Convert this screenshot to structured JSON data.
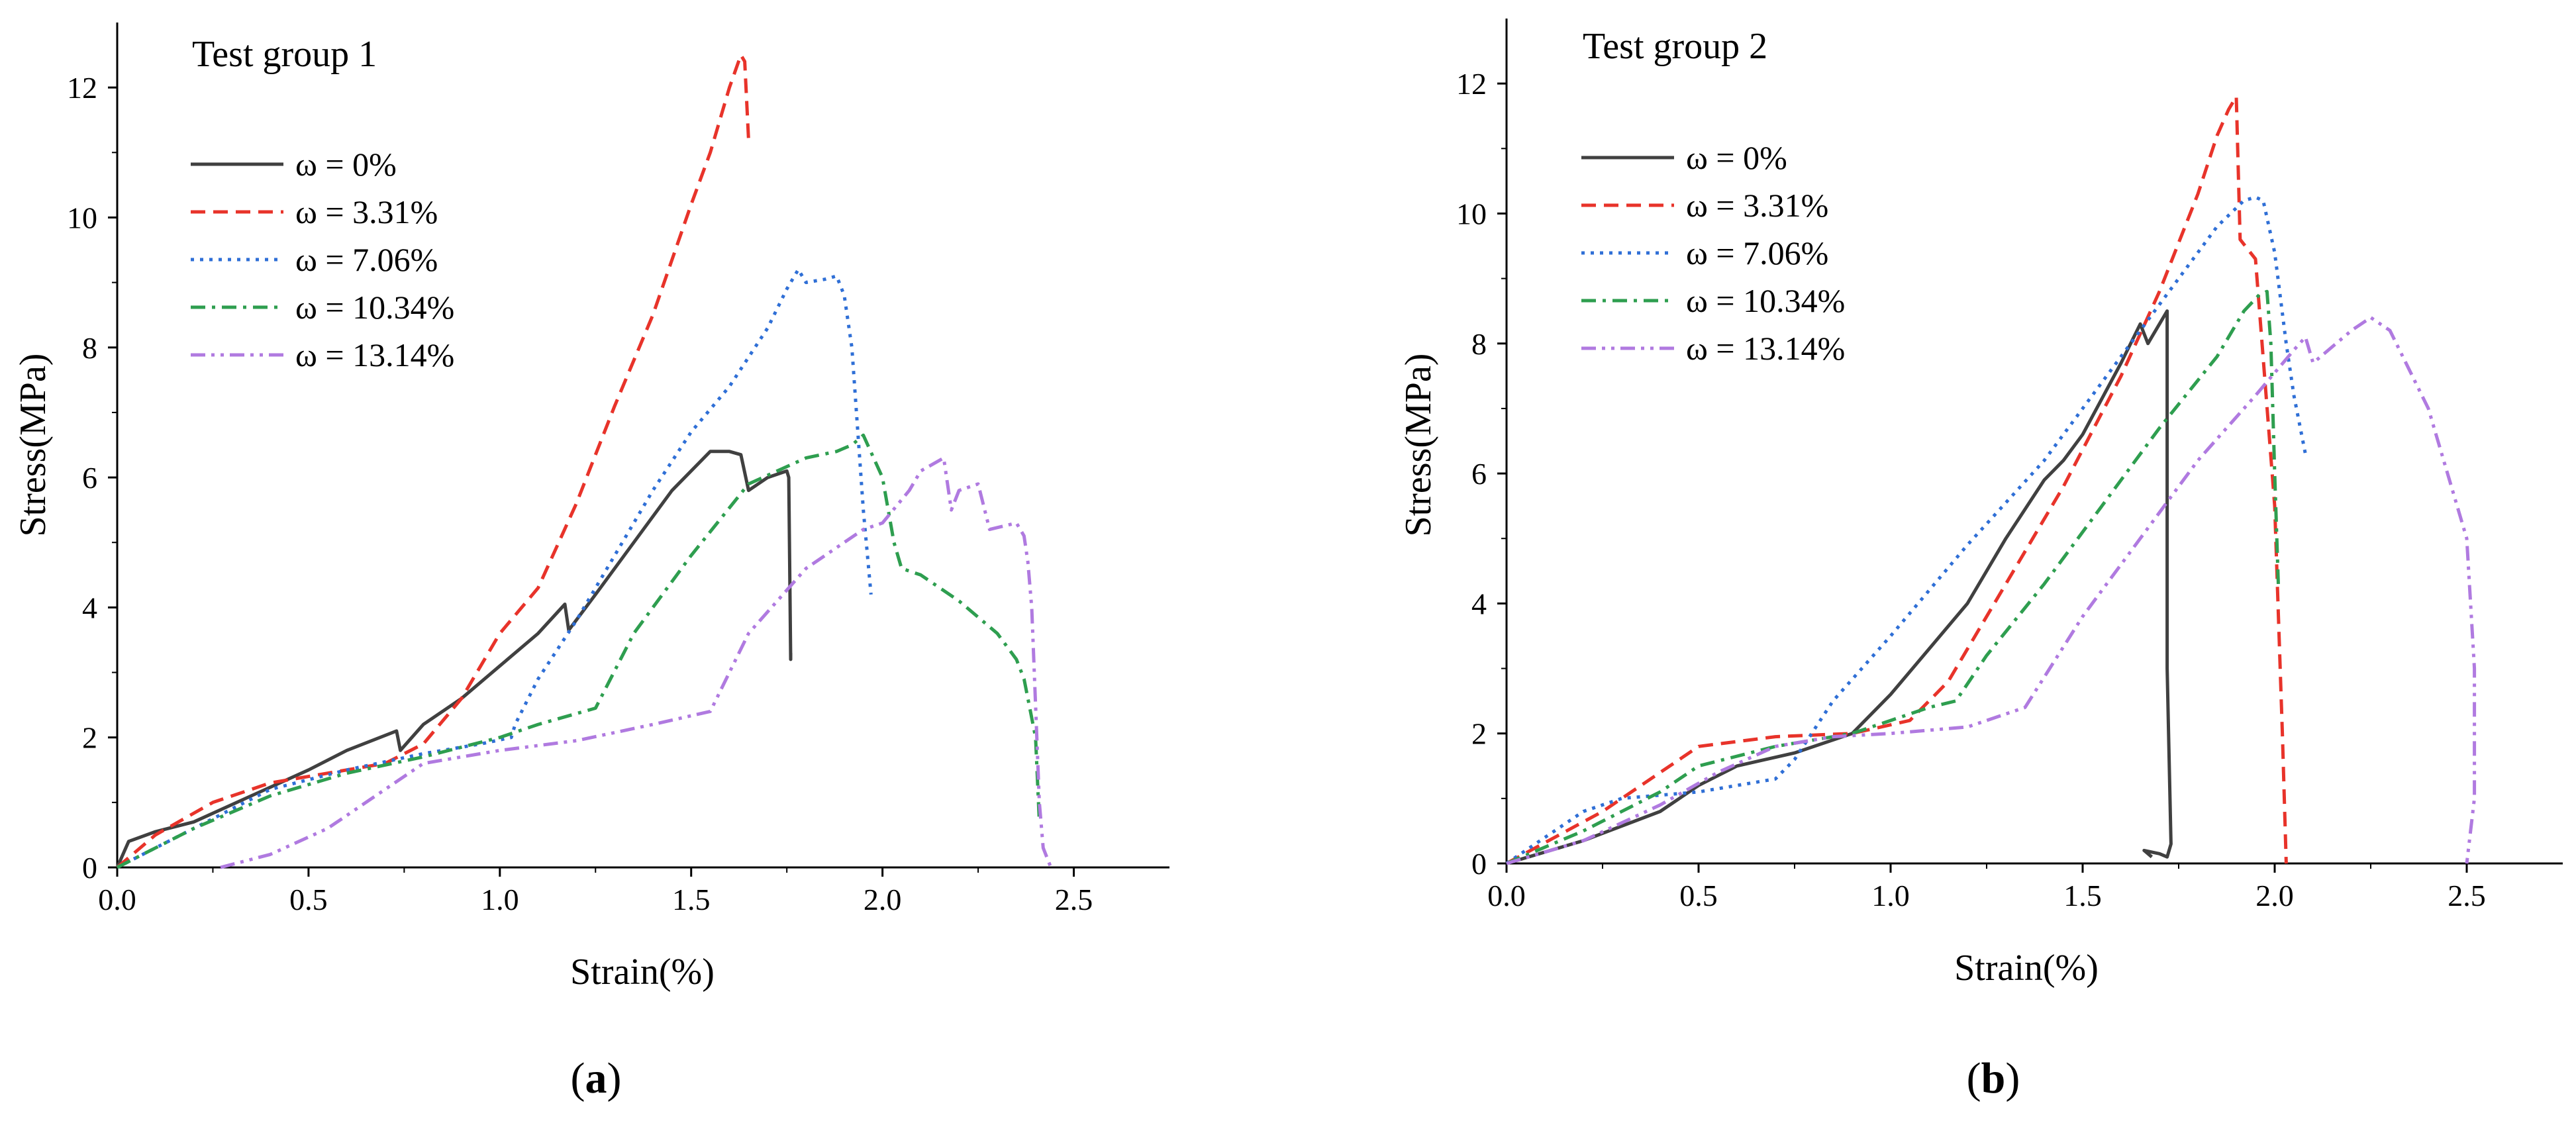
{
  "chart_data": [
    {
      "type": "line",
      "panel_label": "a",
      "title": "Test group 1",
      "xlabel": "Strain(%)",
      "ylabel": "Stress(MPa)",
      "xlim": [
        0,
        2.75
      ],
      "ylim": [
        0,
        13
      ],
      "xticks": [
        "0.0",
        "0.5",
        "1.0",
        "1.5",
        "2.0",
        "2.5"
      ],
      "xtick_values": [
        0,
        0.5,
        1.0,
        1.5,
        2.0,
        2.5
      ],
      "yticks": [
        "0",
        "2",
        "4",
        "6",
        "8",
        "10",
        "12"
      ],
      "ytick_values": [
        0,
        2,
        4,
        6,
        8,
        10,
        12
      ],
      "legend_position": "top-left",
      "series": [
        {
          "name": "ω = 0%",
          "color": "#404040",
          "dash": "solid",
          "x": [
            0,
            0.03,
            0.1,
            0.2,
            0.35,
            0.5,
            0.6,
            0.73,
            0.74,
            0.8,
            0.9,
            1.0,
            1.1,
            1.17,
            1.18,
            1.25,
            1.35,
            1.45,
            1.55,
            1.6,
            1.63,
            1.65,
            1.7,
            1.75,
            1.755,
            1.76,
            1.76
          ],
          "y": [
            0,
            0.4,
            0.55,
            0.7,
            1.1,
            1.5,
            1.8,
            2.1,
            1.8,
            2.2,
            2.6,
            3.1,
            3.6,
            4.05,
            3.65,
            4.2,
            5.0,
            5.8,
            6.4,
            6.4,
            6.35,
            5.8,
            6.0,
            6.1,
            6.0,
            3.2,
            3.3
          ]
        },
        {
          "name": "ω = 3.31%",
          "color": "#e8332a",
          "dash": "dash",
          "x": [
            0,
            0.1,
            0.25,
            0.4,
            0.55,
            0.7,
            0.8,
            0.9,
            1.0,
            1.1,
            1.2,
            1.3,
            1.4,
            1.5,
            1.55,
            1.6,
            1.63,
            1.64,
            1.65
          ],
          "y": [
            0,
            0.5,
            1.0,
            1.3,
            1.45,
            1.6,
            1.9,
            2.6,
            3.6,
            4.3,
            5.6,
            7.1,
            8.5,
            10.2,
            11.0,
            12.0,
            12.5,
            12.4,
            11.2
          ]
        },
        {
          "name": "ω = 7.06%",
          "color": "#2f6fd6",
          "dash": "dot",
          "x": [
            0,
            0.2,
            0.4,
            0.6,
            0.8,
            0.95,
            1.03,
            1.04,
            1.1,
            1.2,
            1.3,
            1.4,
            1.5,
            1.6,
            1.7,
            1.75,
            1.78,
            1.8,
            1.85,
            1.88,
            1.9,
            1.92,
            1.95,
            1.97
          ],
          "y": [
            0,
            0.6,
            1.2,
            1.5,
            1.75,
            1.9,
            2.0,
            2.2,
            2.9,
            3.8,
            4.8,
            5.8,
            6.7,
            7.4,
            8.3,
            8.9,
            9.2,
            9.0,
            9.05,
            9.1,
            8.8,
            8.0,
            5.5,
            4.2
          ]
        },
        {
          "name": "ω = 10.34%",
          "color": "#2e9e4f",
          "dash": "dashdot",
          "x": [
            0,
            0.2,
            0.4,
            0.6,
            0.8,
            1.0,
            1.1,
            1.25,
            1.35,
            1.5,
            1.65,
            1.8,
            1.88,
            1.92,
            1.95,
            2.0,
            2.03,
            2.05,
            2.1,
            2.2,
            2.3,
            2.35,
            2.37,
            2.38,
            2.4,
            2.41
          ],
          "y": [
            0,
            0.6,
            1.1,
            1.45,
            1.7,
            2.0,
            2.2,
            2.45,
            3.6,
            4.8,
            5.9,
            6.3,
            6.4,
            6.5,
            6.65,
            6.0,
            5.0,
            4.6,
            4.5,
            4.1,
            3.6,
            3.2,
            2.9,
            2.6,
            2.0,
            0.7
          ]
        },
        {
          "name": "ω = 13.14%",
          "color": "#b07ae0",
          "dash": "dashdotdot",
          "x": [
            0.27,
            0.4,
            0.55,
            0.7,
            0.8,
            0.9,
            1.0,
            1.2,
            1.4,
            1.55,
            1.65,
            1.8,
            1.9,
            1.95,
            2.0,
            2.07,
            2.1,
            2.16,
            2.18,
            2.2,
            2.25,
            2.28,
            2.35,
            2.37,
            2.38,
            2.39,
            2.4,
            2.41,
            2.42,
            2.44
          ],
          "y": [
            0,
            0.2,
            0.6,
            1.2,
            1.6,
            1.7,
            1.8,
            1.95,
            2.2,
            2.4,
            3.6,
            4.6,
            5.0,
            5.2,
            5.3,
            5.8,
            6.1,
            6.3,
            5.5,
            5.8,
            5.9,
            5.2,
            5.3,
            5.1,
            4.7,
            4.0,
            2.5,
            1.0,
            0.3,
            0
          ]
        }
      ]
    },
    {
      "type": "line",
      "panel_label": "b",
      "title": "Test group 2",
      "xlabel": "Strain(%)",
      "ylabel": "Stress(MPa)",
      "xlim": [
        0,
        2.75
      ],
      "ylim": [
        0,
        13
      ],
      "xticks": [
        "0.0",
        "0.5",
        "1.0",
        "1.5",
        "2.0",
        "2.5"
      ],
      "xtick_values": [
        0,
        0.5,
        1.0,
        1.5,
        2.0,
        2.5
      ],
      "yticks": [
        "0",
        "2",
        "4",
        "6",
        "8",
        "10",
        "12"
      ],
      "ytick_values": [
        0,
        2,
        4,
        6,
        8,
        10,
        12
      ],
      "legend_position": "top-left",
      "series": [
        {
          "name": "ω = 0%",
          "color": "#404040",
          "dash": "solid",
          "x": [
            0,
            0.2,
            0.4,
            0.5,
            0.6,
            0.75,
            0.9,
            1.0,
            1.1,
            1.2,
            1.3,
            1.4,
            1.45,
            1.5,
            1.6,
            1.65,
            1.67,
            1.7,
            1.72,
            1.72,
            1.73,
            1.72,
            1.7,
            1.66,
            1.68
          ],
          "y": [
            0,
            0.35,
            0.8,
            1.2,
            1.5,
            1.7,
            2.0,
            2.6,
            3.3,
            4.0,
            5.0,
            5.9,
            6.2,
            6.6,
            7.7,
            8.3,
            8.0,
            8.3,
            8.5,
            3.0,
            0.3,
            0.1,
            0.15,
            0.2,
            0.1
          ]
        },
        {
          "name": "ω = 3.31%",
          "color": "#e8332a",
          "dash": "dash",
          "x": [
            0,
            0.25,
            0.45,
            0.5,
            0.7,
            0.9,
            1.05,
            1.15,
            1.3,
            1.45,
            1.6,
            1.7,
            1.8,
            1.85,
            1.88,
            1.9,
            1.91,
            1.95,
            2.0,
            2.02,
            2.03
          ],
          "y": [
            0,
            0.8,
            1.6,
            1.8,
            1.95,
            2.0,
            2.2,
            2.8,
            4.3,
            5.8,
            7.5,
            8.8,
            10.3,
            11.2,
            11.6,
            11.8,
            9.6,
            9.3,
            5.5,
            2.0,
            0
          ]
        },
        {
          "name": "ω = 7.06%",
          "color": "#2f6fd6",
          "dash": "dot",
          "x": [
            0,
            0.1,
            0.2,
            0.3,
            0.5,
            0.6,
            0.7,
            0.75,
            0.85,
            1.0,
            1.2,
            1.4,
            1.6,
            1.75,
            1.85,
            1.92,
            1.95,
            1.97,
            2.0,
            2.03,
            2.05,
            2.08
          ],
          "y": [
            0,
            0.4,
            0.8,
            1.0,
            1.1,
            1.2,
            1.3,
            1.6,
            2.5,
            3.5,
            4.9,
            6.2,
            7.8,
            9.0,
            9.8,
            10.2,
            10.25,
            10.2,
            9.4,
            8.0,
            7.2,
            6.3
          ]
        },
        {
          "name": "ω = 10.34%",
          "color": "#2e9e4f",
          "dash": "dashdot",
          "x": [
            0,
            0.2,
            0.4,
            0.5,
            0.7,
            0.9,
            1.0,
            1.1,
            1.17,
            1.25,
            1.4,
            1.55,
            1.7,
            1.85,
            1.92,
            1.96,
            1.98,
            1.99,
            2.0,
            2.01
          ],
          "y": [
            0,
            0.5,
            1.1,
            1.5,
            1.8,
            2.0,
            2.2,
            2.4,
            2.5,
            3.2,
            4.3,
            5.5,
            6.7,
            7.8,
            8.5,
            8.75,
            8.8,
            8.0,
            6.0,
            4.2
          ]
        },
        {
          "name": "ω = 13.14%",
          "color": "#b07ae0",
          "dash": "dashdotdot",
          "x": [
            0,
            0.2,
            0.4,
            0.55,
            0.7,
            0.85,
            1.0,
            1.2,
            1.35,
            1.5,
            1.65,
            1.8,
            1.95,
            2.05,
            2.08,
            2.1,
            2.12,
            2.2,
            2.25,
            2.3,
            2.4,
            2.45,
            2.5,
            2.52,
            2.52,
            2.5
          ],
          "y": [
            0,
            0.35,
            0.9,
            1.4,
            1.8,
            1.95,
            2.0,
            2.1,
            2.4,
            3.8,
            5.0,
            6.2,
            7.2,
            7.9,
            8.1,
            7.7,
            7.8,
            8.2,
            8.4,
            8.2,
            7.0,
            6.0,
            5.0,
            3.0,
            1.0,
            0
          ]
        }
      ]
    }
  ]
}
